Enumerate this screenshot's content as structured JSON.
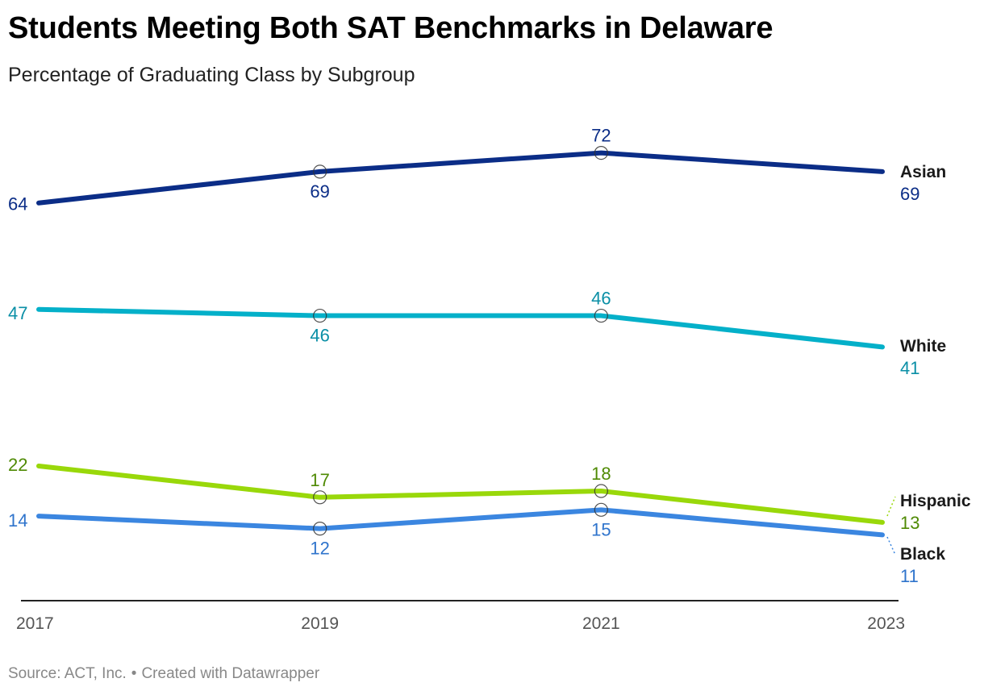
{
  "title": "Students Meeting Both SAT Benchmarks in Delaware",
  "subtitle": "Percentage of Graduating Class by Subgroup",
  "footer": {
    "source": "Source: ACT, Inc.",
    "separator": "•",
    "credit": "Created with Datawrapper"
  },
  "chart_data": {
    "type": "line",
    "x": [
      "2017",
      "2019",
      "2021",
      "2023"
    ],
    "xlabel": "",
    "ylabel": "",
    "ylim": [
      5,
      78
    ],
    "grid": false,
    "legend": "direct labels at right end of lines",
    "series": [
      {
        "name": "Asian",
        "values": [
          64,
          69,
          72,
          69
        ],
        "color": "#0b2d87",
        "label_color": "#0b2d87"
      },
      {
        "name": "White",
        "values": [
          47,
          46,
          46,
          41
        ],
        "color": "#04b0c9",
        "label_color": "#0a8fa6"
      },
      {
        "name": "Hispanic",
        "values": [
          22,
          17,
          18,
          13
        ],
        "color": "#99d80a",
        "label_color": "#4f8a04"
      },
      {
        "name": "Black",
        "values": [
          14,
          12,
          15,
          11
        ],
        "color": "#3b86e0",
        "label_color": "#2f74cc"
      }
    ],
    "axis_color": "#222222",
    "tick_color": "#555555",
    "name_label_color": "#1a1a1a"
  }
}
